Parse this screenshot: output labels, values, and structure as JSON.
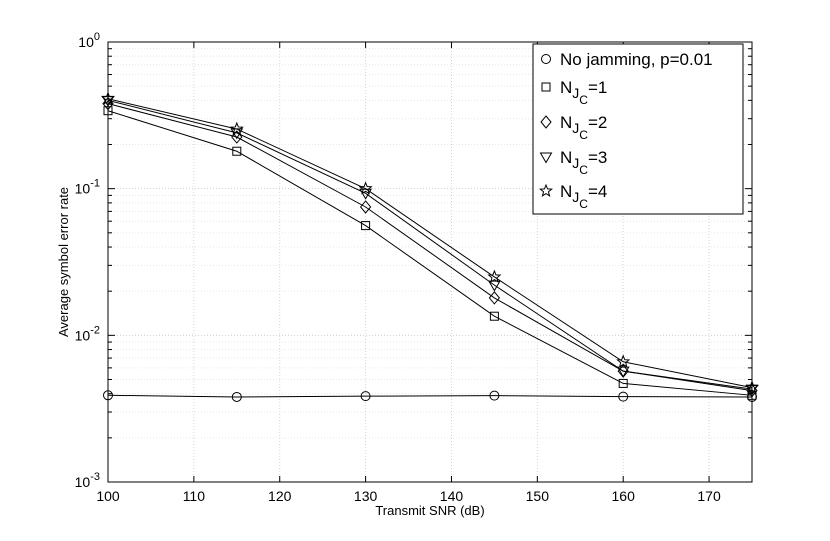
{
  "chart_data": {
    "type": "line",
    "xlabel": "Transmit SNR (dB)",
    "ylabel": "Average symbol error rate",
    "xlim": [
      100,
      175
    ],
    "ylim": [
      0.001,
      1
    ],
    "yscale": "log",
    "grid": true,
    "legend_position": "top-right",
    "x": [
      100,
      115,
      130,
      145,
      160,
      175
    ],
    "x_ticks": [
      100,
      110,
      120,
      130,
      140,
      150,
      160,
      170
    ],
    "y_ticks": [
      {
        "value": 1,
        "base": "10",
        "exp": "0"
      },
      {
        "value": 0.1,
        "base": "10",
        "exp": "-1"
      },
      {
        "value": 0.01,
        "base": "10",
        "exp": "-2"
      },
      {
        "value": 0.001,
        "base": "10",
        "exp": "-3"
      }
    ],
    "series": [
      {
        "key": "no-jamming",
        "label": "No jamming, p=0.01",
        "marker": "circle",
        "values": [
          0.0039,
          0.0038,
          0.00385,
          0.00388,
          0.00382,
          0.0038
        ]
      },
      {
        "key": "njc-1",
        "label_base": "N",
        "label_sub": "J",
        "label_subsub": "C",
        "label_tail": "=1",
        "marker": "square",
        "values": [
          0.34,
          0.18,
          0.056,
          0.0135,
          0.0047,
          0.0039
        ]
      },
      {
        "key": "njc-2",
        "label_base": "N",
        "label_sub": "J",
        "label_subsub": "C",
        "label_tail": "=2",
        "marker": "diamond",
        "values": [
          0.38,
          0.225,
          0.075,
          0.018,
          0.0057,
          0.0042
        ]
      },
      {
        "key": "njc-3",
        "label_base": "N",
        "label_sub": "J",
        "label_subsub": "C",
        "label_tail": "=3",
        "marker": "triangle-down",
        "values": [
          0.4,
          0.24,
          0.093,
          0.022,
          0.0057,
          0.0043
        ]
      },
      {
        "key": "njc-4",
        "label_base": "N",
        "label_sub": "J",
        "label_subsub": "C",
        "label_tail": "=4",
        "marker": "star",
        "values": [
          0.41,
          0.255,
          0.1,
          0.025,
          0.0066,
          0.0044
        ]
      }
    ]
  }
}
